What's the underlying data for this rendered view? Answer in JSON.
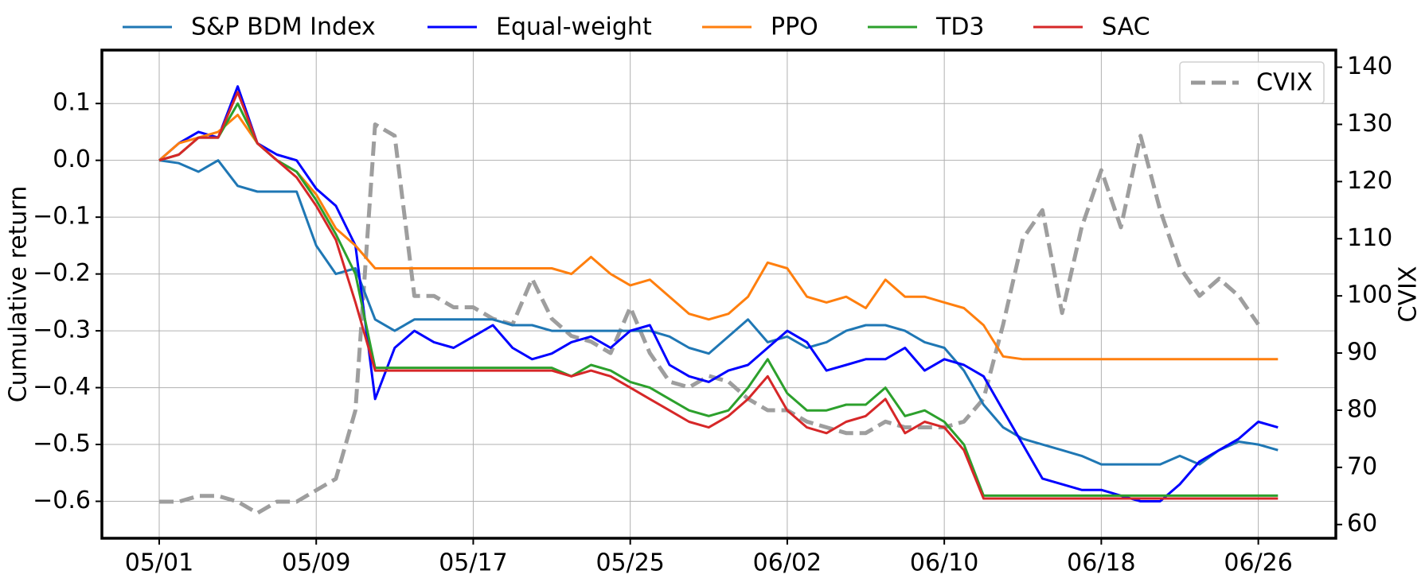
{
  "chart_data": {
    "type": "line",
    "y_label": "Cumulative return",
    "y2_label": "CVIX",
    "x": [
      0,
      1,
      2,
      3,
      4,
      5,
      6,
      7,
      8,
      9,
      10,
      11,
      12,
      13,
      14,
      15,
      16,
      17,
      18,
      19,
      20,
      21,
      22,
      23,
      24,
      25,
      26,
      27,
      28,
      29,
      30,
      31,
      32,
      33,
      34,
      35,
      36,
      37,
      38,
      39,
      40,
      41,
      42,
      43,
      44,
      45,
      46,
      47,
      48,
      49,
      50,
      51,
      52,
      53,
      54,
      55,
      56,
      57
    ],
    "xlim": [
      -2.92,
      59.95
    ],
    "xticks": [
      {
        "value": 0,
        "label": "05/01"
      },
      {
        "value": 8,
        "label": "05/09"
      },
      {
        "value": 16,
        "label": "05/17"
      },
      {
        "value": 24,
        "label": "05/25"
      },
      {
        "value": 32,
        "label": "06/02"
      },
      {
        "value": 40,
        "label": "06/10"
      },
      {
        "value": 48,
        "label": "06/18"
      },
      {
        "value": 56,
        "label": "06/26"
      }
    ],
    "ylim": [
      -0.665,
      0.194
    ],
    "yticks": [
      {
        "value": 0.1,
        "label": "0.1"
      },
      {
        "value": 0,
        "label": "0.0"
      },
      {
        "value": -0.1,
        "label": "−0.1"
      },
      {
        "value": -0.2,
        "label": "−0.2"
      },
      {
        "value": -0.3,
        "label": "−0.3"
      },
      {
        "value": -0.4,
        "label": "−0.4"
      },
      {
        "value": -0.5,
        "label": "−0.5"
      },
      {
        "value": -0.6,
        "label": "−0.6"
      }
    ],
    "y2lim": [
      57.6,
      143
    ],
    "y2ticks": [
      60,
      70,
      80,
      90,
      100,
      110,
      120,
      130,
      140
    ],
    "grid": true,
    "legend": "top",
    "legend_y2": "upper right",
    "series": [
      {
        "name": "S&P BDM Index",
        "color": "#1f77b4",
        "values": [
          0,
          -0.005,
          -0.02,
          0,
          -0.045,
          -0.055,
          -0.055,
          -0.055,
          -0.15,
          -0.2,
          -0.19,
          -0.28,
          -0.3,
          -0.28,
          -0.28,
          -0.28,
          -0.28,
          -0.28,
          -0.29,
          -0.29,
          -0.3,
          -0.3,
          -0.3,
          -0.3,
          -0.3,
          -0.3,
          -0.31,
          -0.33,
          -0.34,
          -0.31,
          -0.28,
          -0.32,
          -0.31,
          -0.33,
          -0.32,
          -0.3,
          -0.29,
          -0.29,
          -0.3,
          -0.32,
          -0.33,
          -0.37,
          -0.43,
          -0.47,
          -0.49,
          -0.5,
          -0.51,
          -0.52,
          -0.535,
          -0.535,
          -0.535,
          -0.535,
          -0.52,
          -0.535,
          -0.51,
          -0.495,
          -0.5,
          -0.51
        ]
      },
      {
        "name": "Equal-weight",
        "color": "#0000ff",
        "values": [
          0,
          0.03,
          0.05,
          0.04,
          0.13,
          0.03,
          0.01,
          0,
          -0.05,
          -0.08,
          -0.15,
          -0.42,
          -0.33,
          -0.3,
          -0.32,
          -0.33,
          -0.31,
          -0.29,
          -0.33,
          -0.35,
          -0.34,
          -0.32,
          -0.31,
          -0.33,
          -0.3,
          -0.29,
          -0.36,
          -0.38,
          -0.39,
          -0.37,
          -0.36,
          -0.33,
          -0.3,
          -0.32,
          -0.37,
          -0.36,
          -0.35,
          -0.35,
          -0.33,
          -0.37,
          -0.35,
          -0.36,
          -0.38,
          -0.44,
          -0.5,
          -0.56,
          -0.57,
          -0.58,
          -0.58,
          -0.59,
          -0.6,
          -0.6,
          -0.57,
          -0.53,
          -0.51,
          -0.49,
          -0.46,
          -0.47
        ]
      },
      {
        "name": "PPO",
        "color": "#ff7f0e",
        "values": [
          0,
          0.03,
          0.04,
          0.05,
          0.08,
          0.03,
          0,
          -0.02,
          -0.06,
          -0.12,
          -0.15,
          -0.19,
          -0.19,
          -0.19,
          -0.19,
          -0.19,
          -0.19,
          -0.19,
          -0.19,
          -0.19,
          -0.19,
          -0.2,
          -0.17,
          -0.2,
          -0.22,
          -0.21,
          -0.24,
          -0.27,
          -0.28,
          -0.27,
          -0.24,
          -0.18,
          -0.19,
          -0.24,
          -0.25,
          -0.24,
          -0.26,
          -0.21,
          -0.24,
          -0.24,
          -0.25,
          -0.26,
          -0.29,
          -0.345,
          -0.35,
          -0.35,
          -0.35,
          -0.35,
          -0.35,
          -0.35,
          -0.35,
          -0.35,
          -0.35,
          -0.35,
          -0.35,
          -0.35,
          -0.35,
          -0.35
        ]
      },
      {
        "name": "TD3",
        "color": "#2ca02c",
        "values": [
          0,
          0.01,
          0.04,
          0.04,
          0.1,
          0.03,
          0,
          -0.02,
          -0.07,
          -0.13,
          -0.2,
          -0.365,
          -0.365,
          -0.365,
          -0.365,
          -0.365,
          -0.365,
          -0.365,
          -0.365,
          -0.365,
          -0.365,
          -0.38,
          -0.36,
          -0.37,
          -0.39,
          -0.4,
          -0.42,
          -0.44,
          -0.45,
          -0.44,
          -0.4,
          -0.35,
          -0.41,
          -0.44,
          -0.44,
          -0.43,
          -0.43,
          -0.4,
          -0.45,
          -0.44,
          -0.46,
          -0.5,
          -0.59,
          -0.59,
          -0.59,
          -0.59,
          -0.59,
          -0.59,
          -0.59,
          -0.59,
          -0.59,
          -0.59,
          -0.59,
          -0.59,
          -0.59,
          -0.59,
          -0.59,
          -0.59
        ]
      },
      {
        "name": "SAC",
        "color": "#d62728",
        "values": [
          0,
          0.01,
          0.04,
          0.04,
          0.12,
          0.03,
          0,
          -0.03,
          -0.08,
          -0.14,
          -0.25,
          -0.37,
          -0.37,
          -0.37,
          -0.37,
          -0.37,
          -0.37,
          -0.37,
          -0.37,
          -0.37,
          -0.37,
          -0.38,
          -0.37,
          -0.38,
          -0.4,
          -0.42,
          -0.44,
          -0.46,
          -0.47,
          -0.45,
          -0.42,
          -0.38,
          -0.44,
          -0.47,
          -0.48,
          -0.46,
          -0.45,
          -0.42,
          -0.48,
          -0.46,
          -0.47,
          -0.51,
          -0.595,
          -0.595,
          -0.595,
          -0.595,
          -0.595,
          -0.595,
          -0.595,
          -0.595,
          -0.595,
          -0.595,
          -0.595,
          -0.595,
          -0.595,
          -0.595,
          -0.595,
          -0.595
        ]
      },
      {
        "name": "CVIX",
        "color": "#999999",
        "axis": "y2",
        "dashed": true,
        "values": [
          64,
          64,
          65,
          65,
          64,
          62,
          64,
          64,
          66,
          68,
          80,
          130,
          128,
          100,
          100,
          98,
          98,
          96,
          95,
          103,
          96,
          93,
          92,
          90,
          98,
          90,
          85,
          84,
          86,
          85,
          82,
          80,
          80,
          78,
          77,
          76,
          76,
          78,
          77,
          77,
          77,
          78,
          82,
          95,
          110,
          115,
          97,
          112,
          122,
          112,
          128,
          115,
          105,
          100,
          103,
          100,
          95,
          null
        ]
      }
    ]
  }
}
